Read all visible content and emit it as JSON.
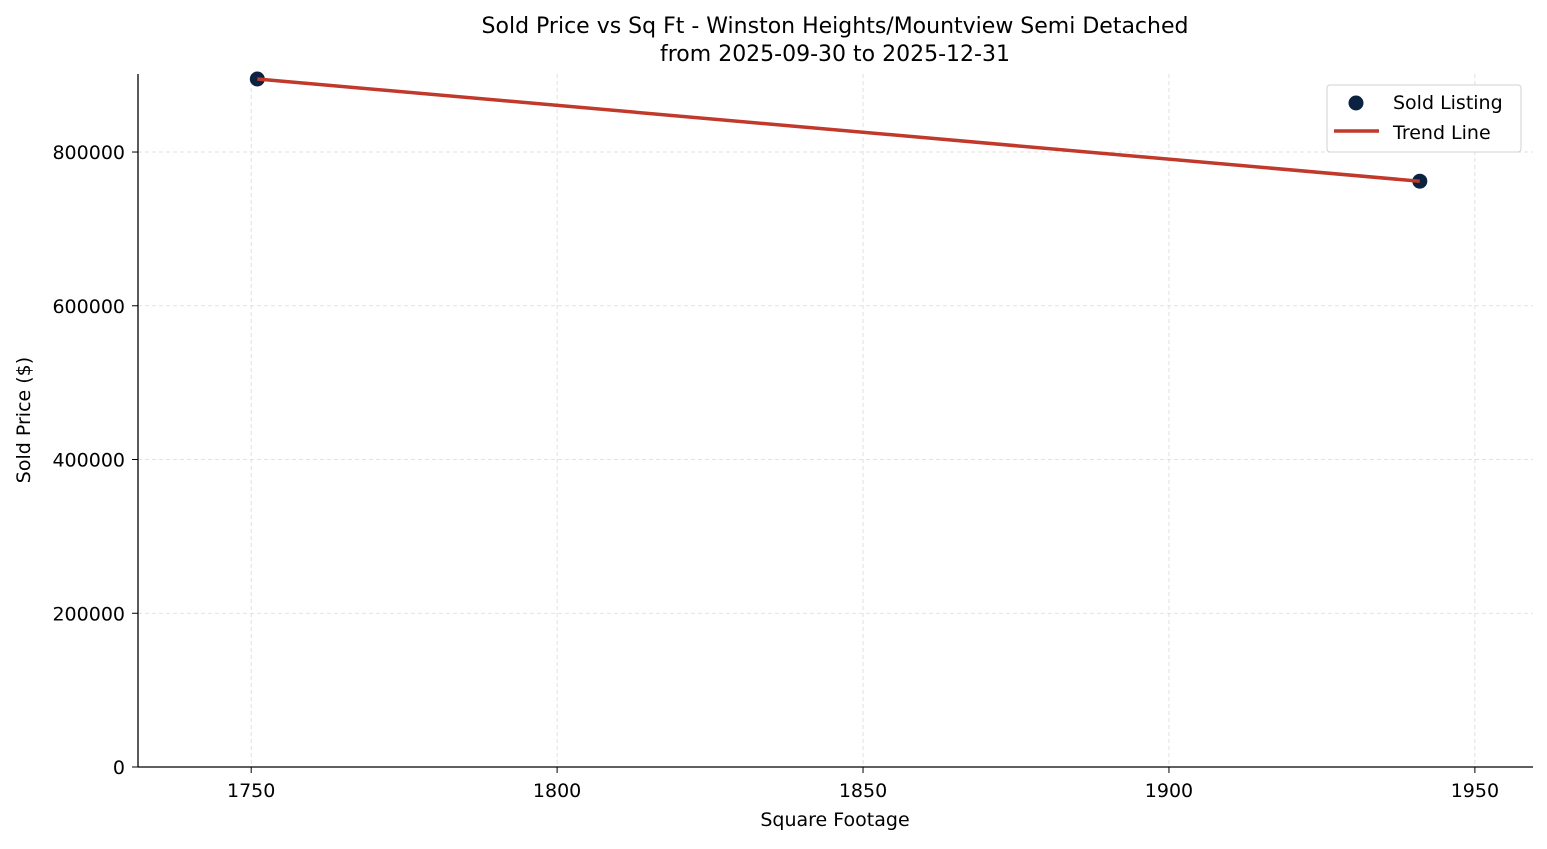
{
  "chart_data": {
    "type": "scatter",
    "title": "Sold Price vs Sq Ft - Winston Heights/Mountview Semi Detached",
    "subtitle": "from 2025-09-30 to 2025-12-31",
    "xlabel": "Square Footage",
    "ylabel": "Sold Price ($)",
    "xlim": [
      1731.5,
      1959.5
    ],
    "ylim": [
      0,
      901500
    ],
    "xticks": [
      1750,
      1800,
      1850,
      1900,
      1950
    ],
    "yticks": [
      0,
      200000,
      400000,
      600000,
      800000
    ],
    "grid": true,
    "legend_position": "top-right",
    "series": [
      {
        "name": "Sold Listing",
        "kind": "scatter",
        "color": "#0b2340",
        "x": [
          1751,
          1941
        ],
        "y": [
          895000,
          762000
        ]
      },
      {
        "name": "Trend Line",
        "kind": "line",
        "color": "#c0392b",
        "x": [
          1751,
          1941
        ],
        "y": [
          895000,
          762000
        ]
      }
    ]
  }
}
